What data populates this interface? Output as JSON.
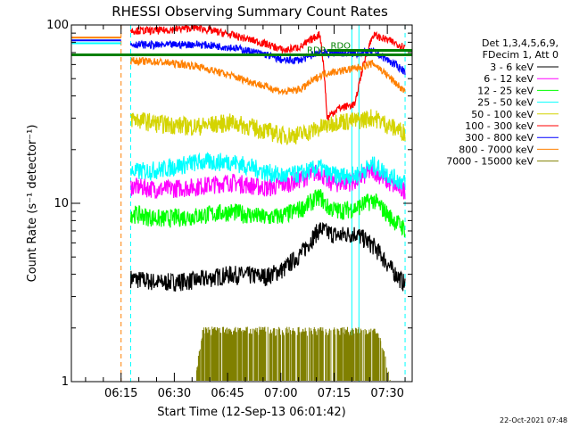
{
  "chart_data": {
    "type": "line",
    "title": "RHESSI Observing Summary Count Rates",
    "xlabel": "Start Time (12-Sep-13 06:01:42)",
    "ylabel": "Count Rate (s⁻¹ detector⁻¹)",
    "yscale": "log",
    "ylim": [
      1,
      100
    ],
    "y_ticks": [
      1,
      10,
      100
    ],
    "y_tick_labels": [
      "1",
      "10",
      "100"
    ],
    "xlim_min": [
      0,
      96
    ],
    "x_ticks_min": [
      14,
      29,
      44,
      59,
      74,
      89
    ],
    "x_tick_labels": [
      "06:15",
      "06:30",
      "06:45",
      "07:00",
      "07:15",
      "07:30"
    ],
    "legend_header": [
      "Det 1,3,4,5,6,9,",
      "FDecim 1, Att 0"
    ],
    "series": [
      {
        "name": "3 - 6 keV",
        "color": "#000000",
        "start_min": 16.7,
        "end_min": 94,
        "x_min": [
          16.7,
          25,
          35,
          45,
          55,
          60,
          65,
          70,
          72,
          75,
          80,
          85,
          90,
          94
        ],
        "values": [
          3.8,
          3.6,
          3.7,
          4.0,
          3.9,
          4.3,
          5.3,
          7.2,
          6.9,
          6.6,
          6.8,
          5.8,
          4.3,
          3.5
        ]
      },
      {
        "name": "6 - 12 keV",
        "color": "#ff00ff",
        "start_min": 16.7,
        "end_min": 94,
        "x_min": [
          16.7,
          25,
          35,
          45,
          55,
          60,
          65,
          70,
          72,
          75,
          80,
          85,
          90,
          94
        ],
        "values": [
          12.5,
          12.0,
          12.4,
          13.2,
          12.2,
          12.8,
          13.8,
          15.2,
          13.3,
          13.0,
          13.3,
          15.4,
          12.8,
          11.8
        ]
      },
      {
        "name": "12 - 25 keV",
        "color": "#00ff00",
        "start_min": 16.7,
        "end_min": 94,
        "x_min": [
          16.7,
          25,
          35,
          45,
          55,
          60,
          65,
          70,
          72,
          75,
          80,
          85,
          90,
          94
        ],
        "values": [
          8.8,
          8.2,
          8.5,
          9.0,
          8.3,
          8.6,
          9.4,
          11.0,
          9.6,
          9.1,
          9.4,
          10.5,
          8.3,
          7.2
        ]
      },
      {
        "name": "25 - 50 keV",
        "color": "#00ffff",
        "start_min": 16.7,
        "end_min": 94,
        "x_min": [
          16.7,
          25,
          35,
          45,
          55,
          60,
          65,
          70,
          72,
          75,
          80,
          85,
          90,
          94
        ],
        "values": [
          15.0,
          15.5,
          17.0,
          17.2,
          15.0,
          14.2,
          14.8,
          16.0,
          14.8,
          14.3,
          14.4,
          16.5,
          14.2,
          13.0
        ]
      },
      {
        "name": "50 - 100 keV",
        "color": "#d4d400",
        "start_min": 16.7,
        "end_min": 94,
        "x_min": [
          16.7,
          25,
          35,
          45,
          55,
          60,
          65,
          70,
          72,
          75,
          80,
          85,
          90,
          94
        ],
        "values": [
          30,
          28,
          27,
          28.5,
          25.5,
          24,
          24.5,
          26.5,
          27.5,
          29,
          29,
          30.5,
          27,
          25
        ]
      },
      {
        "name": "100 - 300 keV",
        "color": "#ff0000",
        "start_min": 16.7,
        "end_min": 94,
        "x_min": [
          16.7,
          25,
          35,
          45,
          55,
          60,
          65,
          70,
          72,
          75,
          80,
          85,
          90,
          94
        ],
        "values": [
          93,
          93,
          97,
          88,
          78,
          72,
          76,
          89,
          30,
          34,
          36,
          88,
          81,
          75
        ]
      },
      {
        "name": "300 - 800 keV",
        "color": "#0000ff",
        "start_min": 16.7,
        "end_min": 94,
        "x_min": [
          16.7,
          25,
          35,
          45,
          55,
          60,
          65,
          70,
          72,
          75,
          80,
          85,
          90,
          94
        ],
        "values": [
          78,
          77,
          78,
          75,
          68,
          63,
          64,
          71,
          69,
          70,
          69,
          71,
          62,
          55
        ]
      },
      {
        "name": "800 - 7000 keV",
        "color": "#ff8000",
        "start_min": 16.7,
        "end_min": 94,
        "x_min": [
          16.7,
          25,
          35,
          45,
          55,
          60,
          65,
          70,
          72,
          75,
          80,
          85,
          90,
          94
        ],
        "values": [
          63,
          62,
          59,
          52,
          45,
          42,
          44,
          52,
          54,
          55,
          57,
          61,
          50,
          42
        ]
      },
      {
        "name": "7000 - 15000 keV",
        "color": "#808000",
        "start_min": 16.7,
        "end_min": 94,
        "x_min": [
          16.7,
          25,
          33,
          37,
          44,
          72,
          79,
          86,
          94
        ],
        "values": [
          0,
          0,
          0,
          1.9,
          1.9,
          1.9,
          1.9,
          1.9,
          0
        ]
      }
    ],
    "pre_data_segments": [
      {
        "color": "#ff8000",
        "x_min": [
          0,
          14
        ],
        "value": 85
      },
      {
        "color": "#00ffff",
        "x_min": [
          0,
          14
        ],
        "value": 79
      },
      {
        "color": "#0000ff",
        "x_min": [
          0,
          14
        ],
        "value": 82
      }
    ],
    "annotations": [
      {
        "text": "RDO",
        "x_min": [
          72,
          96
        ],
        "value": 72,
        "color": "#008000"
      },
      {
        "text": "RDR",
        "x_min": [
          0,
          96
        ],
        "value": 68,
        "color": "#008000"
      }
    ],
    "vlines": [
      {
        "x_min": 14.0,
        "color": "#ff8000",
        "style": "dashed"
      },
      {
        "x_min": 16.7,
        "color": "#00ffff",
        "style": "dashed"
      },
      {
        "x_min": 94.0,
        "color": "#00ffff",
        "style": "dashed"
      },
      {
        "x_min": 79.0,
        "color": "#00ffff",
        "style": "solid"
      },
      {
        "x_min": 81.0,
        "color": "#00ffff",
        "style": "solid"
      }
    ],
    "footer_date": "22-Oct-2021 07:48"
  }
}
